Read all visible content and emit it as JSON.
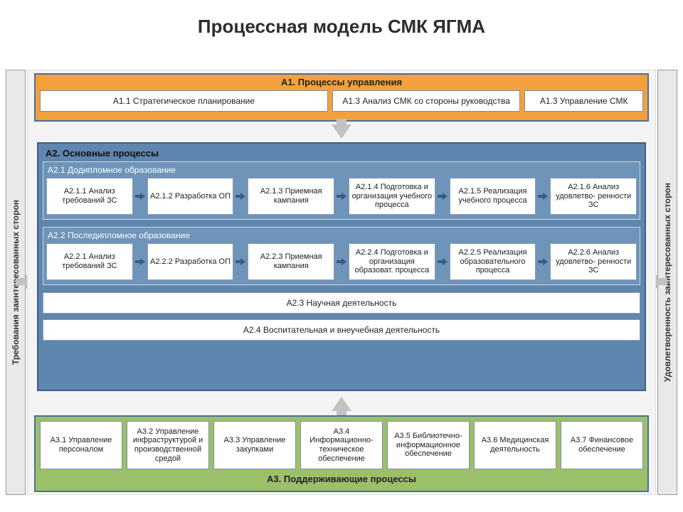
{
  "title": "Процессная модель СМК ЯГМА",
  "left_label": "Требования заинтересованных сторон",
  "right_label": "Удовлетворенность заинтересованных сторон",
  "colors": {
    "a1_bg": "#f2a13c",
    "a2_bg": "#5f86ae",
    "a2_sub_bg": "#6f94ba",
    "a3_bg": "#9cc06a",
    "border": "#4a6f96",
    "node_bg": "#ffffff",
    "arrow_fill": "#c2c2c2",
    "slab_bg": "#f4f4f4",
    "sidebar_bg": "#e9e9e9"
  },
  "a1": {
    "title": "А1. Процессы управления",
    "items": [
      "А1.1 Стратегическое планирование",
      "А1.3 Анализ СМК со стороны руководства",
      "А1.3 Управление СМК"
    ]
  },
  "a2": {
    "title": "А2. Основные процессы",
    "sub1": {
      "title": "А2.1 Додипломное образование",
      "nodes": [
        "А2.1.1 Анализ требований ЗС",
        "А2.1.2 Разработка ОП",
        "А2.1.3 Приемная кампания",
        "А2.1.4 Подготовка и организация учебного процесса",
        "А2.1.5 Реализация учебного процесса",
        "А2.1.6 Анализ удовлетво- ренности ЗС"
      ]
    },
    "sub2": {
      "title": "А2.2 Последипломное образование",
      "nodes": [
        "А2.2.1 Анализ требований ЗС",
        "А2.2.2 Разработка ОП",
        "А2.2.3 Приемная кампания",
        "А2.2.4 Подготовка и организация образоват. процесса",
        "А2.2.5 Реализация образовательного процесса",
        "А2.2.6 Анализ удовлетво- ренности ЗС"
      ]
    },
    "bar1": "А2.3 Научная деятельность",
    "bar2": "А2.4 Воспитательная и внеучебная деятельность"
  },
  "a3": {
    "title": "А3. Поддерживающие процессы",
    "items": [
      "А3.1 Управление персоналом",
      "А3.2 Управление инфраструктурой и производственной средой",
      "А3.3 Управление закупками",
      "А3.4 Информационно-техническое обеспечение",
      "А3.5 Библиотечно-информационное обеспечение",
      "А3.6 Медицинская деятельность",
      "А3.7 Финансовое обеспечение"
    ]
  },
  "flow_arrow_color": "#3a5b80"
}
